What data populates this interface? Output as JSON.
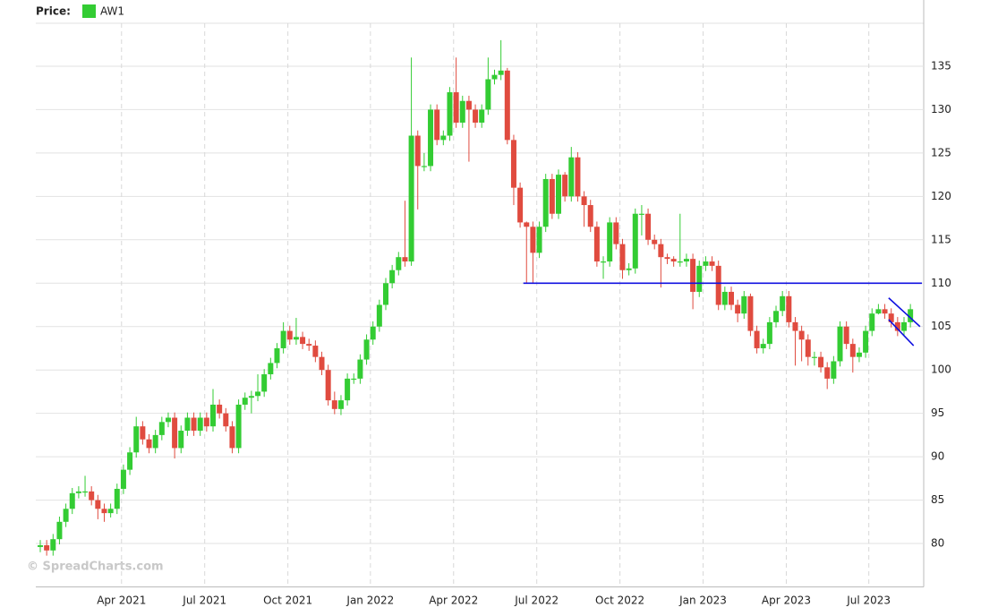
{
  "chart_data": {
    "type": "candlestick",
    "legend_title": "Price:",
    "watermark": "© SpreadCharts.com",
    "series": [
      {
        "name": "AW1",
        "color": "#33cc33",
        "up_color": "#33cc33",
        "down_color": "#e04b3f",
        "x": [
          0,
          1,
          2,
          3,
          4,
          5,
          6,
          7,
          8,
          9,
          10,
          11,
          12,
          13,
          14,
          15,
          16,
          17,
          18,
          19,
          20,
          21,
          22,
          23,
          24,
          25,
          26,
          27,
          28,
          29,
          30,
          31,
          32,
          33,
          34,
          35,
          36,
          37,
          38,
          39,
          40,
          41,
          42,
          43,
          44,
          45,
          46,
          47,
          48,
          49,
          50,
          51,
          52,
          53,
          54,
          55,
          56,
          57,
          58,
          59,
          60,
          61,
          62,
          63,
          64,
          65,
          66,
          67,
          68,
          69,
          70,
          71,
          72,
          73,
          74,
          75,
          76,
          77,
          78,
          79,
          80,
          81,
          82,
          83,
          84,
          85,
          86,
          87,
          88,
          89,
          90,
          91,
          92,
          93,
          94,
          95,
          96,
          97,
          98,
          99,
          100,
          101,
          102,
          103,
          104,
          105,
          106,
          107,
          108,
          109,
          110,
          111,
          112,
          113,
          114,
          115,
          116,
          117,
          118,
          119,
          120,
          121,
          122,
          123,
          124,
          125,
          126,
          127,
          128,
          129,
          130,
          131,
          132,
          133,
          134,
          135,
          136
        ],
        "open": [
          79.6,
          79.8,
          79.2,
          80.5,
          82.5,
          84,
          85.8,
          86,
          86,
          85,
          84,
          83.5,
          84,
          86.3,
          88.5,
          90.5,
          93.5,
          92,
          91,
          92.5,
          94,
          94.5,
          91,
          93,
          94.5,
          93,
          94.5,
          93.5,
          96,
          95,
          93.5,
          91,
          96,
          96.8,
          97,
          97.5,
          99.5,
          100.8,
          102.5,
          104.5,
          103.5,
          103.8,
          103,
          102.8,
          101.5,
          100,
          96.5,
          95.5,
          96.5,
          99,
          99,
          101.2,
          103.5,
          105,
          107.5,
          110,
          111.5,
          113,
          112.5,
          127,
          123.5,
          123.5,
          130,
          126.5,
          127,
          132,
          128.5,
          131,
          130,
          128.5,
          130,
          133.5,
          134,
          134.5,
          126.5,
          121,
          117,
          116.5,
          113.5,
          116.5,
          122,
          118,
          122.5,
          120,
          124.5,
          120,
          119,
          116.5,
          112.5,
          112.5,
          117,
          114.5,
          111.5,
          111.7,
          118,
          118,
          115,
          114.5,
          113,
          112.8,
          112.5,
          112.5,
          112.8,
          109,
          112,
          112.5,
          112,
          107.5,
          109,
          107.5,
          106.5,
          108.5,
          104.5,
          102.5,
          103,
          105.5,
          106.8,
          108.5,
          105.5,
          104.5,
          103.5,
          101.5,
          101.5,
          100.3,
          99,
          101,
          105,
          103,
          101.5,
          102,
          104.5,
          106.5,
          107,
          106.5,
          105.5,
          104.5,
          105.5
        ],
        "high": [
          80.4,
          80.4,
          81.1,
          83.1,
          84.6,
          86.4,
          86.6,
          87.8,
          86.6,
          85.6,
          84.6,
          84.6,
          86.9,
          89.1,
          91.1,
          94.6,
          94.1,
          92.6,
          93.1,
          94.6,
          95.1,
          95.1,
          93.6,
          95.1,
          95.1,
          95.1,
          95.1,
          97.8,
          96.6,
          95.6,
          94.1,
          96.6,
          97.4,
          97.6,
          99.5,
          100.1,
          101.4,
          103.1,
          105.5,
          105.1,
          106,
          104.4,
          103.6,
          103.4,
          102.1,
          100.6,
          97.5,
          97.1,
          99.6,
          99.6,
          101.8,
          104.1,
          105.6,
          108.1,
          110.6,
          112.1,
          113.6,
          119.5,
          136,
          127.6,
          125,
          130.6,
          130.6,
          127.6,
          132.6,
          136,
          131.6,
          131.6,
          130.6,
          130.6,
          136,
          134.6,
          138,
          134.8,
          127.1,
          121.6,
          117.1,
          117.1,
          117.1,
          122.6,
          122.6,
          123.1,
          122.8,
          125.7,
          125.1,
          120.6,
          119.6,
          117.1,
          113.1,
          117.6,
          117.6,
          115.1,
          112.3,
          118.6,
          119,
          118.6,
          115.6,
          115.1,
          113.4,
          113.1,
          118,
          113.4,
          113.4,
          112.6,
          113.1,
          113.1,
          112.6,
          109.6,
          109.6,
          108.1,
          109.1,
          108.8,
          105.1,
          103.6,
          106.1,
          107.4,
          109.1,
          109.1,
          106.1,
          105.1,
          104.1,
          102.1,
          102.1,
          100.9,
          101.6,
          105.6,
          105.6,
          103.6,
          102.6,
          105.1,
          107.1,
          107.6,
          107.6,
          107.1,
          106.1,
          106.1,
          107.6
        ],
        "low": [
          79,
          78.6,
          78.6,
          79.9,
          81.9,
          83.4,
          85.2,
          85.4,
          84.4,
          82.8,
          82.5,
          83,
          83.4,
          85.7,
          87.9,
          89.9,
          91.4,
          90.4,
          90.4,
          91.9,
          93.4,
          89.8,
          90.4,
          92.4,
          92.4,
          92.4,
          92.9,
          92.9,
          94.4,
          92.9,
          90.4,
          90.4,
          95.4,
          95,
          96.4,
          96.9,
          98.9,
          100.2,
          101.9,
          102.9,
          102.9,
          102.4,
          102.2,
          100.9,
          99.4,
          95.9,
          94.9,
          94.8,
          95.9,
          98.4,
          98.4,
          100.6,
          102.9,
          104.4,
          106.9,
          109.4,
          110.9,
          111.9,
          112,
          118.5,
          122.9,
          122.9,
          125.9,
          125.9,
          126.4,
          127.9,
          127.9,
          124,
          127.9,
          127.9,
          129.4,
          132.9,
          133.4,
          126,
          119,
          116.4,
          110,
          110,
          112.9,
          115.9,
          117.4,
          117.4,
          119.4,
          119.4,
          119.4,
          116.5,
          115.9,
          111.9,
          110.5,
          111.9,
          113.9,
          110.5,
          110.9,
          111.1,
          115.5,
          114.4,
          113.9,
          109.5,
          112.2,
          111.9,
          111.9,
          111.9,
          107,
          108.4,
          111.4,
          111.4,
          106.9,
          106.9,
          106.9,
          105.5,
          105.9,
          103.9,
          101.9,
          101.9,
          102.4,
          104.9,
          106.2,
          104.9,
          100.5,
          101,
          100.5,
          100.5,
          99.7,
          97.8,
          98.4,
          100.4,
          102.4,
          99.7,
          100.9,
          101.4,
          103.9,
          106.4,
          105.9,
          104.9,
          103.9,
          103.9,
          104.9
        ],
        "close": [
          79.8,
          79.2,
          80.5,
          82.5,
          84,
          85.8,
          86,
          86,
          85,
          84,
          83.5,
          84,
          86.3,
          88.5,
          90.5,
          93.5,
          92,
          91,
          92.5,
          94,
          94.5,
          91,
          93,
          94.5,
          93,
          94.5,
          93.5,
          96,
          95,
          93.5,
          91,
          96,
          96.8,
          97,
          97.5,
          99.5,
          100.8,
          102.5,
          104.5,
          103.5,
          103.8,
          103,
          102.8,
          101.5,
          100,
          96.5,
          95.5,
          96.5,
          99,
          99,
          101.2,
          103.5,
          105,
          107.5,
          110,
          111.5,
          113,
          112.5,
          127,
          123.5,
          123.5,
          130,
          126.5,
          127,
          132,
          128.5,
          131,
          130,
          128.5,
          130,
          133.5,
          134,
          134.5,
          126.5,
          121,
          117,
          116.5,
          113.5,
          116.5,
          122,
          118,
          122.5,
          120,
          124.5,
          120,
          119,
          116.5,
          112.5,
          112.5,
          117,
          114.5,
          111.5,
          111.7,
          118,
          118,
          115,
          114.5,
          113,
          112.8,
          112.5,
          112.5,
          112.8,
          109,
          112,
          112.5,
          112,
          107.5,
          109,
          107.5,
          106.5,
          108.5,
          104.5,
          102.5,
          103,
          105.5,
          106.8,
          108.5,
          105.5,
          104.5,
          103.5,
          101.5,
          101.5,
          100.3,
          99,
          101,
          105,
          103,
          101.5,
          102,
          104.5,
          106.5,
          107,
          106.5,
          105.5,
          104.5,
          105.5,
          107
        ]
      }
    ],
    "lines": [
      {
        "color": "#1010e0",
        "x": [
          75.5,
          137.8
        ],
        "y": [
          110,
          110
        ]
      },
      {
        "color": "#1010e0",
        "x": [
          132.6,
          137.5
        ],
        "y": [
          108.3,
          105
        ]
      },
      {
        "color": "#1010e0",
        "x": [
          132.6,
          136.5
        ],
        "y": [
          105.8,
          102.8
        ]
      }
    ],
    "xlim": [
      -0.7,
      137.8
    ],
    "xticks": [
      {
        "value": 12.7,
        "label": "Apr 2021"
      },
      {
        "value": 25.7,
        "label": "Jul 2021"
      },
      {
        "value": 38.7,
        "label": "Oct 2021"
      },
      {
        "value": 51.6,
        "label": "Jan 2022"
      },
      {
        "value": 64.6,
        "label": "Apr 2022"
      },
      {
        "value": 77.6,
        "label": "Jul 2022"
      },
      {
        "value": 90.6,
        "label": "Oct 2022"
      },
      {
        "value": 103.6,
        "label": "Jan 2023"
      },
      {
        "value": 116.6,
        "label": "Apr 2023"
      },
      {
        "value": 129.5,
        "label": "Jul 2023"
      }
    ],
    "ylim": [
      75,
      140
    ],
    "yticks": [
      80,
      85,
      90,
      95,
      100,
      105,
      110,
      115,
      120,
      125,
      130,
      135
    ],
    "grid": true
  }
}
